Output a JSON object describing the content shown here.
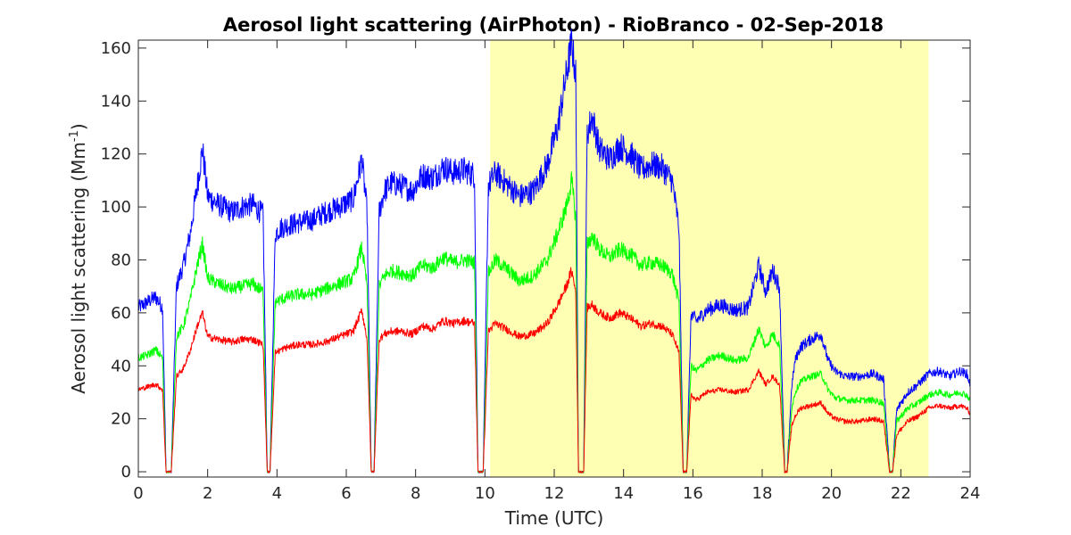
{
  "chart_data": {
    "type": "line",
    "title": "Aerosol light scattering (AirPhoton) - RioBranco - 02-Sep-2018",
    "xlabel": "Time (UTC)",
    "ylabel_prefix": "Aerosol light scattering (Mm",
    "ylabel_sup": "-1",
    "ylabel_suffix": ")",
    "xlim": [
      0,
      24
    ],
    "ylim": [
      -2,
      163
    ],
    "xticks": [
      0,
      2,
      4,
      6,
      8,
      10,
      12,
      14,
      16,
      18,
      20,
      22,
      24
    ],
    "yticks": [
      0,
      20,
      40,
      60,
      80,
      100,
      120,
      140,
      160
    ],
    "grid": false,
    "highlight": {
      "x_start": 10.15,
      "x_end": 22.8,
      "color": "#ffffb3"
    },
    "x": [
      0.0,
      0.25,
      0.5,
      0.7,
      0.8,
      0.95,
      1.1,
      1.3,
      1.5,
      1.7,
      1.85,
      2.0,
      2.3,
      2.7,
      3.0,
      3.3,
      3.6,
      3.72,
      3.8,
      3.95,
      4.1,
      4.3,
      4.6,
      5.0,
      5.4,
      5.8,
      6.2,
      6.45,
      6.6,
      6.72,
      6.8,
      6.95,
      7.1,
      7.3,
      7.6,
      7.9,
      8.2,
      8.5,
      8.8,
      9.1,
      9.4,
      9.7,
      9.8,
      9.95,
      10.1,
      10.3,
      10.6,
      11.0,
      11.4,
      11.8,
      12.1,
      12.35,
      12.5,
      12.62,
      12.7,
      12.85,
      12.95,
      13.1,
      13.3,
      13.6,
      13.9,
      14.2,
      14.5,
      14.8,
      15.1,
      15.4,
      15.6,
      15.72,
      15.82,
      15.95,
      16.1,
      16.4,
      16.8,
      17.2,
      17.6,
      17.9,
      18.1,
      18.3,
      18.5,
      18.65,
      18.72,
      18.85,
      18.95,
      19.1,
      19.4,
      19.7,
      19.9,
      20.1,
      20.4,
      20.8,
      21.2,
      21.5,
      21.68,
      21.76,
      21.88,
      22.0,
      22.2,
      22.5,
      22.8,
      23.1,
      23.4,
      23.7,
      23.9,
      24.0
    ],
    "series": [
      {
        "color": "#0000ff",
        "values": [
          62,
          64,
          66,
          62,
          0,
          0,
          70,
          78,
          90,
          108,
          122,
          104,
          101,
          98,
          100,
          101,
          97,
          0,
          0,
          90,
          92,
          93,
          94,
          95,
          98,
          100,
          103,
          118,
          98,
          0,
          0,
          98,
          106,
          109,
          108,
          106,
          112,
          111,
          115,
          113,
          114,
          112,
          0,
          0,
          108,
          113,
          109,
          104,
          106,
          116,
          130,
          150,
          162,
          150,
          0,
          0,
          128,
          134,
          122,
          118,
          123,
          120,
          114,
          116,
          115,
          110,
          92,
          0,
          0,
          60,
          57,
          61,
          63,
          61,
          62,
          78,
          68,
          76,
          70,
          0,
          0,
          32,
          42,
          47,
          50,
          52,
          42,
          38,
          36,
          36,
          37,
          35,
          0,
          0,
          23,
          26,
          30,
          33,
          37,
          38,
          36,
          38,
          37,
          33
        ]
      },
      {
        "color": "#00ff00",
        "values": [
          43,
          44,
          46,
          43,
          0,
          0,
          51,
          55,
          65,
          78,
          86,
          73,
          71,
          69,
          70,
          71,
          68,
          0,
          0,
          64,
          65,
          66,
          67,
          67,
          69,
          71,
          73,
          85,
          70,
          0,
          0,
          70,
          74,
          76,
          75,
          74,
          78,
          77,
          81,
          79,
          80,
          79,
          0,
          0,
          75,
          80,
          77,
          72,
          74,
          80,
          90,
          100,
          110,
          96,
          0,
          0,
          86,
          89,
          84,
          81,
          84,
          82,
          78,
          79,
          78,
          75,
          64,
          0,
          0,
          40,
          38,
          42,
          44,
          42,
          43,
          54,
          47,
          52,
          48,
          0,
          0,
          24,
          30,
          34,
          36,
          37,
          31,
          28,
          27,
          27,
          27,
          26,
          0,
          0,
          19,
          21,
          24,
          26,
          29,
          30,
          29,
          30,
          29,
          27
        ]
      },
      {
        "color": "#ff0000",
        "values": [
          31,
          32,
          33,
          31,
          0,
          0,
          36,
          39,
          46,
          55,
          60,
          51,
          50,
          49,
          50,
          50,
          48,
          0,
          0,
          45,
          46,
          47,
          48,
          48,
          49,
          51,
          53,
          61,
          50,
          0,
          0,
          50,
          52,
          53,
          53,
          52,
          55,
          54,
          57,
          56,
          57,
          56,
          0,
          0,
          53,
          56,
          54,
          51,
          52,
          56,
          63,
          70,
          76,
          68,
          0,
          0,
          62,
          63,
          60,
          58,
          60,
          58,
          55,
          56,
          55,
          52,
          45,
          0,
          0,
          29,
          27,
          30,
          31,
          30,
          31,
          38,
          33,
          36,
          33,
          0,
          0,
          17,
          21,
          24,
          25,
          26,
          22,
          20,
          19,
          19,
          20,
          19,
          0,
          0,
          14,
          16,
          19,
          21,
          24,
          25,
          24,
          25,
          24,
          22
        ]
      }
    ]
  }
}
